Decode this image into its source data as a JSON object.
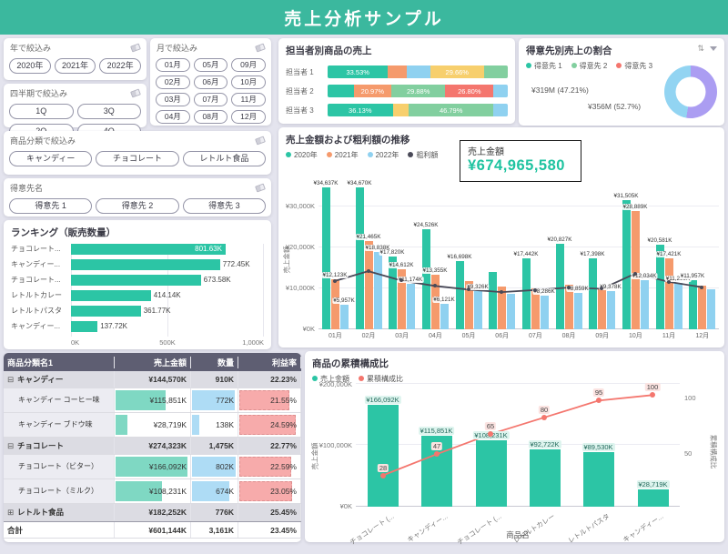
{
  "header": {
    "title": "売上分析サンプル"
  },
  "colors": {
    "header_bg": "#3bb89e",
    "accent_teal": "#2cc5a5",
    "coral": "#f4766e",
    "orange": "#f59a6c",
    "yellow": "#f7cf6d",
    "green": "#82cf9f",
    "light_blue": "#8fd1f0",
    "lavender": "#ab9df2",
    "line_dark": "#4a4a58"
  },
  "icons": {
    "sort": "⇅"
  },
  "slicers": {
    "year": {
      "title": "年で絞込み",
      "options": [
        "2020年",
        "2021年",
        "2022年"
      ]
    },
    "month": {
      "title": "月で絞込み",
      "options": [
        "01月",
        "02月",
        "03月",
        "04月",
        "05月",
        "06月",
        "07月",
        "08月",
        "09月",
        "10月",
        "11月",
        "12月"
      ]
    },
    "quarter": {
      "title": "四半期で絞込み",
      "options": [
        "1Q",
        "3Q",
        "2Q",
        "4Q"
      ]
    },
    "category": {
      "title": "商品分類で絞込み",
      "options": [
        "キャンディー",
        "チョコレート",
        "レトルト食品"
      ]
    },
    "customer": {
      "title": "得意先名",
      "options": [
        "得意先 1",
        "得意先 2",
        "得意先 3"
      ]
    }
  },
  "chart_data": [
    {
      "type": "bar",
      "subtype": "stacked-horizontal-100pct",
      "title": "担当者別商品の売上",
      "categories": [
        "担当者 1",
        "担当者 2",
        "担当者 3"
      ],
      "rows": [
        {
          "segments": [
            {
              "color": "teal",
              "pct": 33.53,
              "label": "33.53%"
            },
            {
              "color": "orange",
              "pct": 10.5,
              "label": ""
            },
            {
              "color": "blue",
              "pct": 13.0,
              "label": ""
            },
            {
              "color": "yellow",
              "pct": 29.66,
              "label": "29.66%"
            },
            {
              "color": "green",
              "pct": 13.31,
              "label": ""
            }
          ]
        },
        {
          "segments": [
            {
              "color": "teal",
              "pct": 14.44,
              "label": ""
            },
            {
              "color": "orange",
              "pct": 20.97,
              "label": "20.97%"
            },
            {
              "color": "green",
              "pct": 29.88,
              "label": "29.88%"
            },
            {
              "color": "coral",
              "pct": 26.8,
              "label": "26.80%"
            },
            {
              "color": "blue",
              "pct": 7.91,
              "label": ""
            }
          ]
        },
        {
          "segments": [
            {
              "color": "teal",
              "pct": 36.13,
              "label": "36.13%"
            },
            {
              "color": "yellow",
              "pct": 9.0,
              "label": ""
            },
            {
              "color": "green",
              "pct": 46.79,
              "label": "46.79%"
            },
            {
              "color": "blue",
              "pct": 8.08,
              "label": ""
            }
          ]
        }
      ]
    },
    {
      "type": "pie",
      "subtype": "donut",
      "title": "得意先別売上の割合",
      "legend": [
        "得意先 1",
        "得意先 2",
        "得意先 3"
      ],
      "slices": [
        {
          "label": "¥319M (47.21%)",
          "pct": 47.21,
          "color": "#92d4f2"
        },
        {
          "label": "¥356M (52.7%)",
          "pct": 52.7,
          "color": "#ab9df2"
        }
      ]
    },
    {
      "type": "bar",
      "subtype": "grouped-bars-with-line",
      "title": "売上金額および粗利額の推移",
      "legend": [
        "2020年",
        "2021年",
        "2022年",
        "粗利額"
      ],
      "callout": {
        "label": "売上金額",
        "value": "¥674,965,580"
      },
      "ylabel": "売上金額",
      "ylim": [
        0,
        35000
      ],
      "y_ticks": [
        "¥0K",
        "¥10,000K",
        "¥20,000K",
        "¥30,000K"
      ],
      "x": [
        "01月",
        "02月",
        "03月",
        "04月",
        "05月",
        "06月",
        "07月",
        "08月",
        "09月",
        "10月",
        "11月",
        "12月"
      ],
      "series": [
        {
          "name": "2020年",
          "values": [
            34637,
            34670,
            17820,
            24526,
            16698,
            13900,
            17442,
            20827,
            17398,
            31505,
            20581,
            11957
          ],
          "labels": [
            "¥34,637K",
            "¥34,670K",
            "¥17,820K",
            "¥24,526K",
            "¥16,698K",
            "",
            "¥17,442K",
            "¥20,827K",
            "¥17,398K",
            "¥31,505K",
            "¥20,581K",
            "¥11,957K"
          ]
        },
        {
          "name": "2021年",
          "values": [
            12123,
            21465,
            14612,
            13355,
            11800,
            10400,
            9900,
            10800,
            10100,
            28889,
            17421,
            10600
          ],
          "labels": [
            "¥12,123K",
            "¥21,465K",
            "¥14,612K",
            "¥13,355K",
            "",
            "",
            "",
            "",
            "",
            "¥28,889K",
            "¥17,421K",
            ""
          ]
        },
        {
          "name": "2022年",
          "values": [
            5957,
            18838,
            11174,
            6121,
            9326,
            8600,
            8286,
            8859,
            9378,
            12034,
            11299,
            9800
          ],
          "labels": [
            "¥5,957K",
            "¥18,838K",
            "¥11,174K",
            "¥6,121K",
            "¥9,326K",
            "",
            "¥8,286K",
            "¥8,859K",
            "¥9,378K",
            "¥12,034K",
            "¥11,299K",
            ""
          ]
        }
      ],
      "line": {
        "name": "粗利額",
        "values": [
          11800,
          14200,
          11900,
          10600,
          9700,
          9100,
          9600,
          10200,
          9900,
          13600,
          11600,
          10300
        ]
      }
    },
    {
      "type": "bar",
      "subtype": "horizontal",
      "title": "ランキング（販売数量）",
      "categories": [
        "チョコレート...",
        "キャンディー...",
        "チョコレート...",
        "レトルトカレー",
        "レトルトパスタ",
        "キャンディー..."
      ],
      "values": [
        801.63,
        772.45,
        673.58,
        414.14,
        361.77,
        137.72
      ],
      "labels": [
        "801.63K",
        "772.45K",
        "673.58K",
        "414.14K",
        "361.77K",
        "137.72K"
      ],
      "x_ticks": [
        "0K",
        "500K",
        "1,000K"
      ],
      "xlim": [
        0,
        1000
      ]
    },
    {
      "type": "table",
      "headers": [
        "商品分類名1",
        "売上金額",
        "数量",
        "利益率"
      ],
      "rows": [
        {
          "kind": "parent",
          "toggle": "⊟",
          "name": "キャンディー",
          "sales": "¥144,570K",
          "qty": "910K",
          "margin": "22.23%"
        },
        {
          "kind": "sub",
          "name": "キャンディー コーヒー味",
          "sales": "¥115,851K",
          "qty": "772K",
          "margin": "21.55%",
          "sales_pct": 70,
          "qty_pct": 96,
          "margin_pct": 85
        },
        {
          "kind": "sub",
          "name": "キャンディー ブドウ味",
          "sales": "¥28,719K",
          "qty": "138K",
          "margin": "24.59%",
          "sales_pct": 17,
          "qty_pct": 17,
          "margin_pct": 96
        },
        {
          "kind": "parent",
          "toggle": "⊟",
          "name": "チョコレート",
          "sales": "¥274,323K",
          "qty": "1,475K",
          "margin": "22.77%"
        },
        {
          "kind": "sub",
          "name": "チョコレート（ビター）",
          "sales": "¥166,092K",
          "qty": "802K",
          "margin": "22.59%",
          "sales_pct": 100,
          "qty_pct": 100,
          "margin_pct": 88
        },
        {
          "kind": "sub",
          "name": "チョコレート（ミルク）",
          "sales": "¥108,231K",
          "qty": "674K",
          "margin": "23.05%",
          "sales_pct": 65,
          "qty_pct": 84,
          "margin_pct": 90
        },
        {
          "kind": "parent",
          "toggle": "⊞",
          "name": "レトルト食品",
          "sales": "¥182,252K",
          "qty": "776K",
          "margin": "25.45%"
        },
        {
          "kind": "total",
          "name": "合計",
          "sales": "¥601,144K",
          "qty": "3,161K",
          "margin": "23.45%"
        }
      ]
    },
    {
      "type": "bar",
      "subtype": "pareto",
      "title": "商品の累積構成比",
      "legend": [
        "売上金額",
        "累積構成比"
      ],
      "categories": [
        "チョコレート (...",
        "キャンディー...",
        "チョコレート (...",
        "レトルトカレー",
        "レトルトパスタ",
        "キャンディー..."
      ],
      "bar_values": [
        166092,
        115851,
        108231,
        92722,
        89530,
        28719
      ],
      "bar_labels": [
        "¥166,092K",
        "¥115,851K",
        "¥108,231K",
        "¥92,722K",
        "¥89,530K",
        "¥28,719K"
      ],
      "line_values": [
        28,
        47,
        65,
        80,
        95,
        100
      ],
      "line_labels": [
        "28",
        "47",
        "65",
        "80",
        "95",
        "100"
      ],
      "ylabel": "売上金額",
      "y2label": "累積構成比",
      "xlabel": "商品名",
      "y_ticks": [
        "¥0K",
        "¥100,000K",
        "¥200,000K"
      ],
      "y2_ticks": [
        "50",
        "100"
      ],
      "ylim": [
        0,
        200000
      ]
    }
  ]
}
